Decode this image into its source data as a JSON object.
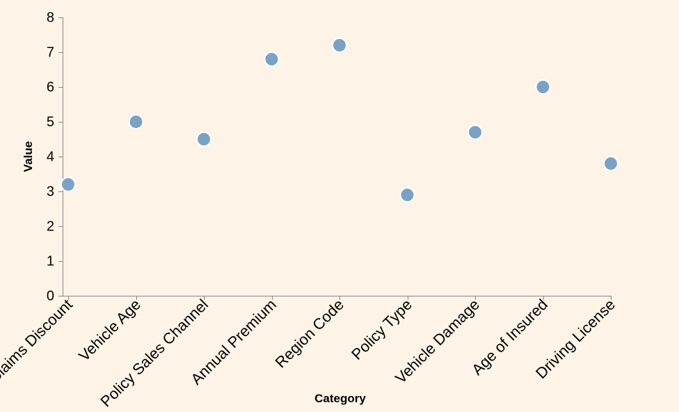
{
  "chart_data": {
    "type": "scatter",
    "categories": [
      "No Claims Discount",
      "Vehicle Age",
      "Policy Sales Channel",
      "Annual Premium",
      "Region Code",
      "Policy Type",
      "Vehicle Damage",
      "Age of Insured",
      "Driving License"
    ],
    "values": [
      3.2,
      5.0,
      4.5,
      6.8,
      7.2,
      2.9,
      4.7,
      6.0,
      3.8
    ],
    "xlabel": "Category",
    "ylabel": "Value",
    "ylim": [
      0,
      8
    ],
    "yticks": [
      0,
      1,
      2,
      3,
      4,
      5,
      6,
      7,
      8
    ],
    "grid": false,
    "colors": {
      "point": "#7aa2c6",
      "background": "#fdf3e6",
      "axis": "#888888"
    }
  }
}
